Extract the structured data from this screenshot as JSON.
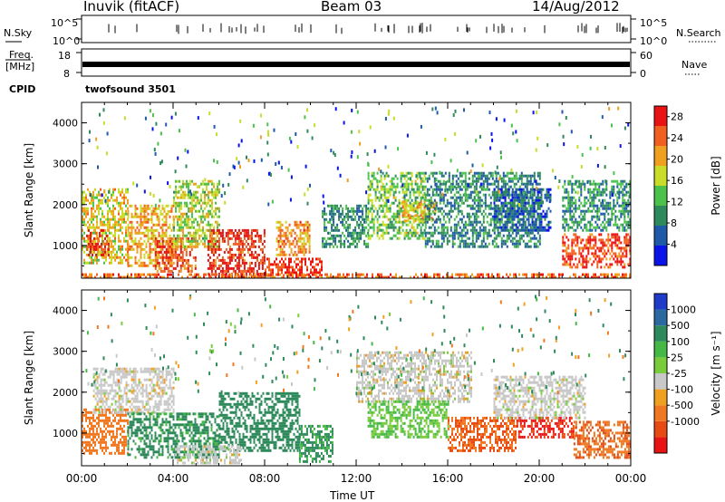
{
  "header": {
    "station": "Inuvik (fitACF)",
    "beam": "Beam 03",
    "date": "14/Aug/2012"
  },
  "nsky_panel": {
    "left_label": "N.Sky",
    "right_label": "N.Search",
    "left_ticks": [
      "10^5",
      "10^0"
    ],
    "right_ticks": [
      "10^5",
      "10^0"
    ]
  },
  "freq_panel": {
    "left_label_1": "Freq.",
    "left_label_2": "[MHz]",
    "right_label": "Nave",
    "left_ticks": [
      "18",
      "8"
    ],
    "right_ticks": [
      "60",
      "0"
    ]
  },
  "cpid": {
    "label": "CPID",
    "value": "twofsound 3501"
  },
  "chart_data": [
    {
      "type": "heatmap",
      "title": "Power",
      "ylabel": "Slant Range [km]",
      "ylim": [
        200,
        4500
      ],
      "yticks": [
        "1000",
        "2000",
        "3000",
        "4000"
      ],
      "xlim": [
        "00:00",
        "24:00"
      ],
      "colorbar": {
        "label": "Power [dB]",
        "ticks": [
          "28",
          "24",
          "20",
          "16",
          "12",
          "8",
          "4"
        ],
        "range": [
          0,
          30
        ],
        "colors": [
          "#0a14e8",
          "#1e5aa8",
          "#2e8a5a",
          "#4cc24c",
          "#c8dc28",
          "#f0a020",
          "#f06020",
          "#e81414"
        ]
      },
      "echo_regions": [
        {
          "t0": 0.0,
          "t1": 2.0,
          "r0": 600,
          "r1": 2400,
          "power": 18
        },
        {
          "t0": 0.2,
          "t1": 1.2,
          "r0": 800,
          "r1": 1400,
          "power": 26
        },
        {
          "t0": 2.0,
          "t1": 4.0,
          "r0": 500,
          "r1": 2000,
          "power": 20
        },
        {
          "t0": 3.2,
          "t1": 5.0,
          "r0": 350,
          "r1": 1200,
          "power": 25
        },
        {
          "t0": 4.0,
          "t1": 6.0,
          "r0": 1000,
          "r1": 2600,
          "power": 16
        },
        {
          "t0": 5.5,
          "t1": 8.0,
          "r0": 250,
          "r1": 1400,
          "power": 27
        },
        {
          "t0": 8.0,
          "t1": 10.5,
          "r0": 250,
          "r1": 700,
          "power": 28
        },
        {
          "t0": 8.5,
          "t1": 10.0,
          "r0": 800,
          "r1": 1600,
          "power": 22
        },
        {
          "t0": 10.5,
          "t1": 12.5,
          "r0": 1000,
          "r1": 2000,
          "power": 10
        },
        {
          "t0": 12.5,
          "t1": 15.0,
          "r0": 1200,
          "r1": 2800,
          "power": 14
        },
        {
          "t0": 14.0,
          "t1": 15.5,
          "r0": 1600,
          "r1": 2100,
          "power": 20
        },
        {
          "t0": 15.0,
          "t1": 20.0,
          "r0": 1000,
          "r1": 2800,
          "power": 9
        },
        {
          "t0": 18.0,
          "t1": 20.5,
          "r0": 1400,
          "r1": 2400,
          "power": 6
        },
        {
          "t0": 21.0,
          "t1": 24.0,
          "r0": 500,
          "r1": 1300,
          "power": 26
        },
        {
          "t0": 21.0,
          "t1": 24.0,
          "r0": 1400,
          "r1": 2600,
          "power": 10
        },
        {
          "t0": 0.0,
          "t1": 24.0,
          "r0": 200,
          "r1": 320,
          "power": 24
        }
      ]
    },
    {
      "type": "heatmap",
      "title": "Velocity",
      "ylabel": "Slant Range [km]",
      "ylim": [
        200,
        4500
      ],
      "yticks": [
        "1000",
        "2000",
        "3000",
        "4000"
      ],
      "xlim": [
        "00:00",
        "24:00"
      ],
      "colorbar": {
        "label": "Velocity [m s⁻¹]",
        "ticks": [
          "1000",
          "500",
          "100",
          "25",
          "-25",
          "-100",
          "-500",
          "-1000"
        ],
        "colors": [
          "#1e3cc8",
          "#2a6aa0",
          "#2e8a5a",
          "#46b846",
          "#7acc3a",
          "#c8c8c8",
          "#f0a020",
          "#f07820",
          "#e84a14",
          "#e81414"
        ]
      },
      "echo_regions": [
        {
          "t0": 0.0,
          "t1": 2.0,
          "r0": 500,
          "r1": 1600,
          "v": -200
        },
        {
          "t0": 0.5,
          "t1": 4.0,
          "r0": 1500,
          "r1": 2600,
          "v": 0
        },
        {
          "t0": 2.0,
          "t1": 6.0,
          "r0": 400,
          "r1": 1500,
          "v": 150
        },
        {
          "t0": 6.0,
          "t1": 9.5,
          "r0": 600,
          "r1": 2000,
          "v": 300
        },
        {
          "t0": 4.0,
          "t1": 7.0,
          "r0": 300,
          "r1": 700,
          "v": 0
        },
        {
          "t0": 9.5,
          "t1": 11.0,
          "r0": 300,
          "r1": 1200,
          "v": 120
        },
        {
          "t0": 12.0,
          "t1": 17.0,
          "r0": 1800,
          "r1": 3000,
          "v": 0
        },
        {
          "t0": 12.5,
          "t1": 16.0,
          "r0": 900,
          "r1": 1800,
          "v": 60
        },
        {
          "t0": 16.0,
          "t1": 19.0,
          "r0": 600,
          "r1": 1400,
          "v": -300
        },
        {
          "t0": 19.0,
          "t1": 21.5,
          "r0": 900,
          "r1": 1400,
          "v": -600
        },
        {
          "t0": 18.0,
          "t1": 22.0,
          "r0": 1400,
          "r1": 2400,
          "v": 0
        },
        {
          "t0": 21.5,
          "t1": 24.0,
          "r0": 400,
          "r1": 1300,
          "v": -250
        }
      ]
    }
  ],
  "xaxis": {
    "label": "Time UT",
    "ticks": [
      "00:00",
      "04:00",
      "08:00",
      "12:00",
      "16:00",
      "20:00",
      "00:00"
    ]
  },
  "colors": {
    "panel_border": "#000000",
    "background": "#ffffff"
  }
}
